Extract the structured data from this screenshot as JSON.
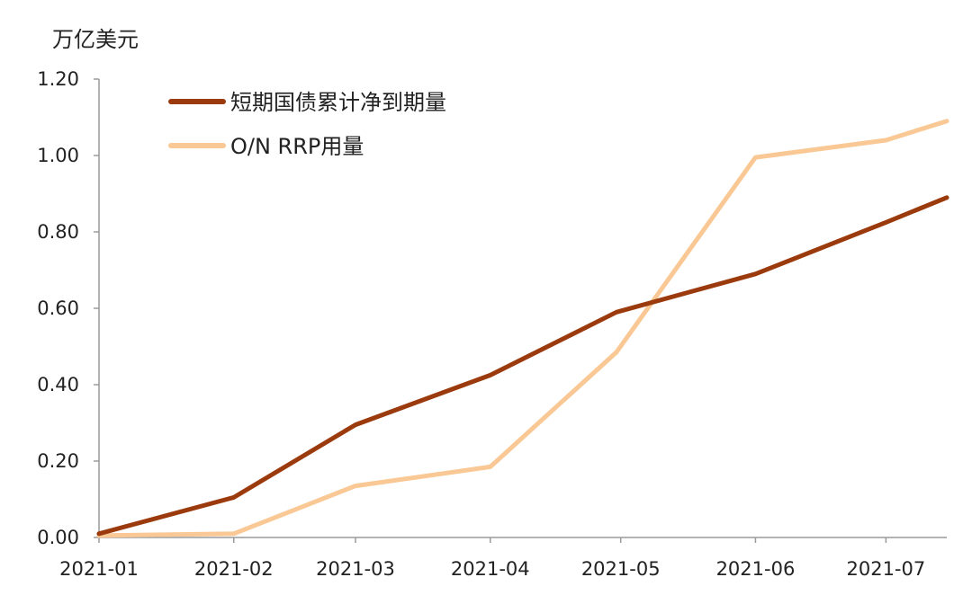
{
  "chart_data": {
    "type": "line",
    "unit_label": "万亿美元",
    "x": [
      "2021-01-01",
      "2021-02-01",
      "2021-03-01",
      "2021-04-01",
      "2021-05-01",
      "2021-06-01",
      "2021-07-01",
      "2021-07-15"
    ],
    "x_tick_labels": [
      "2021-01",
      "2021-02",
      "2021-03",
      "2021-04",
      "2021-05",
      "2021-06",
      "2021-07"
    ],
    "y_tick_labels": [
      "0.00",
      "0.20",
      "0.40",
      "0.60",
      "0.80",
      "1.00",
      "1.20"
    ],
    "ylim": [
      0,
      1.2
    ],
    "grid": false,
    "legend_position": "top-left",
    "series": [
      {
        "name": "短期国债累计净到期量",
        "color": "#9b3a0c",
        "x": [
          "2021-01-01",
          "2021-02-01",
          "2021-03-01",
          "2021-04-01",
          "2021-04-30",
          "2021-06-01",
          "2021-07-01",
          "2021-07-15"
        ],
        "values": [
          0.01,
          0.105,
          0.295,
          0.425,
          0.59,
          0.69,
          0.825,
          0.89
        ]
      },
      {
        "name": "O/N RRP用量",
        "color": "#f9c894",
        "x": [
          "2021-01-01",
          "2021-02-01",
          "2021-03-01",
          "2021-04-01",
          "2021-04-30",
          "2021-06-01",
          "2021-07-01",
          "2021-07-15"
        ],
        "values": [
          0.005,
          0.01,
          0.135,
          0.185,
          0.485,
          0.995,
          1.04,
          1.09
        ]
      }
    ]
  }
}
